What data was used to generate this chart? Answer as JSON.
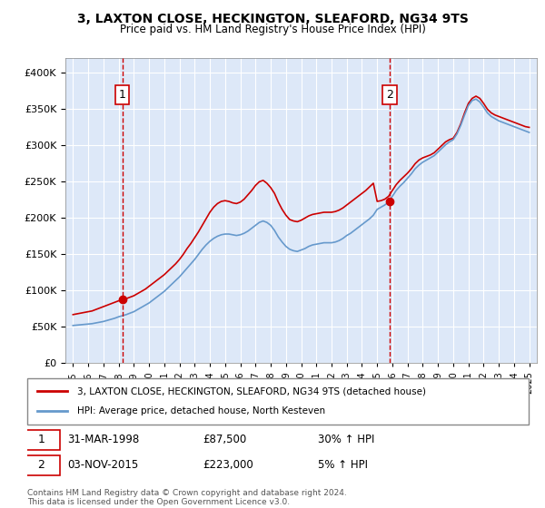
{
  "title": "3, LAXTON CLOSE, HECKINGTON, SLEAFORD, NG34 9TS",
  "subtitle": "Price paid vs. HM Land Registry's House Price Index (HPI)",
  "bg_color": "#dde8f8",
  "plot_bg_color": "#dde8f8",
  "red_line_color": "#cc0000",
  "blue_line_color": "#6699cc",
  "sale1_x": 1998.25,
  "sale1_y": 87500,
  "sale1_label": "1",
  "sale1_date": "31-MAR-1998",
  "sale1_price": "£87,500",
  "sale1_hpi": "30% ↑ HPI",
  "sale2_x": 2015.83,
  "sale2_y": 223000,
  "sale2_label": "2",
  "sale2_date": "03-NOV-2015",
  "sale2_price": "£223,000",
  "sale2_hpi": "5% ↑ HPI",
  "ylim": [
    0,
    420000
  ],
  "yticks": [
    0,
    50000,
    100000,
    150000,
    200000,
    250000,
    300000,
    350000,
    400000
  ],
  "ytick_labels": [
    "£0",
    "£50K",
    "£100K",
    "£150K",
    "£200K",
    "£250K",
    "£300K",
    "£350K",
    "£400K"
  ],
  "xlim_start": 1994.5,
  "xlim_end": 2025.5,
  "xticks": [
    1995,
    1996,
    1997,
    1998,
    1999,
    2000,
    2001,
    2002,
    2003,
    2004,
    2005,
    2006,
    2007,
    2008,
    2009,
    2010,
    2011,
    2012,
    2013,
    2014,
    2015,
    2016,
    2017,
    2018,
    2019,
    2020,
    2021,
    2022,
    2023,
    2024,
    2025
  ],
  "legend_red": "3, LAXTON CLOSE, HECKINGTON, SLEAFORD, NG34 9TS (detached house)",
  "legend_blue": "HPI: Average price, detached house, North Kesteven",
  "footer": "Contains HM Land Registry data © Crown copyright and database right 2024.\nThis data is licensed under the Open Government Licence v3.0.",
  "red_x": [
    1995.0,
    1995.25,
    1995.5,
    1995.75,
    1996.0,
    1996.25,
    1996.5,
    1996.75,
    1997.0,
    1997.25,
    1997.5,
    1997.75,
    1998.0,
    1998.25,
    1998.5,
    1998.75,
    1999.0,
    1999.25,
    1999.5,
    1999.75,
    2000.0,
    2000.25,
    2000.5,
    2000.75,
    2001.0,
    2001.25,
    2001.5,
    2001.75,
    2002.0,
    2002.25,
    2002.5,
    2002.75,
    2003.0,
    2003.25,
    2003.5,
    2003.75,
    2004.0,
    2004.25,
    2004.5,
    2004.75,
    2005.0,
    2005.25,
    2005.5,
    2005.75,
    2006.0,
    2006.25,
    2006.5,
    2006.75,
    2007.0,
    2007.25,
    2007.5,
    2007.75,
    2008.0,
    2008.25,
    2008.5,
    2008.75,
    2009.0,
    2009.25,
    2009.5,
    2009.75,
    2010.0,
    2010.25,
    2010.5,
    2010.75,
    2011.0,
    2011.25,
    2011.5,
    2011.75,
    2012.0,
    2012.25,
    2012.5,
    2012.75,
    2013.0,
    2013.25,
    2013.5,
    2013.75,
    2014.0,
    2014.25,
    2014.5,
    2014.75,
    2015.0,
    2015.25,
    2015.5,
    2015.75,
    2016.0,
    2016.25,
    2016.5,
    2016.75,
    2017.0,
    2017.25,
    2017.5,
    2017.75,
    2018.0,
    2018.25,
    2018.5,
    2018.75,
    2019.0,
    2019.25,
    2019.5,
    2019.75,
    2020.0,
    2020.25,
    2020.5,
    2020.75,
    2021.0,
    2021.25,
    2021.5,
    2021.75,
    2022.0,
    2022.25,
    2022.5,
    2022.75,
    2023.0,
    2023.25,
    2023.5,
    2023.75,
    2024.0,
    2024.25,
    2024.5,
    2024.75,
    2025.0
  ],
  "red_y": [
    67000,
    68000,
    69000,
    70000,
    71000,
    72000,
    74000,
    76000,
    78000,
    80000,
    82000,
    84000,
    86000,
    87500,
    89000,
    91000,
    93000,
    96000,
    99000,
    102000,
    106000,
    110000,
    114000,
    118000,
    122000,
    127000,
    132000,
    137000,
    143000,
    150000,
    158000,
    165000,
    173000,
    181000,
    190000,
    199000,
    208000,
    215000,
    220000,
    223000,
    224000,
    223000,
    221000,
    220000,
    222000,
    226000,
    232000,
    238000,
    245000,
    250000,
    252000,
    248000,
    242000,
    234000,
    222000,
    212000,
    204000,
    198000,
    196000,
    195000,
    197000,
    200000,
    203000,
    205000,
    206000,
    207000,
    208000,
    208000,
    208000,
    209000,
    211000,
    214000,
    218000,
    222000,
    226000,
    230000,
    234000,
    238000,
    243000,
    248000,
    223000,
    224000,
    226000,
    230000,
    238000,
    246000,
    252000,
    257000,
    262000,
    268000,
    275000,
    280000,
    283000,
    285000,
    287000,
    290000,
    295000,
    300000,
    305000,
    308000,
    310000,
    318000,
    330000,
    345000,
    358000,
    365000,
    368000,
    365000,
    358000,
    350000,
    345000,
    342000,
    340000,
    338000,
    336000,
    334000,
    332000,
    330000,
    328000,
    326000,
    325000
  ],
  "blue_x": [
    1995.0,
    1995.25,
    1995.5,
    1995.75,
    1996.0,
    1996.25,
    1996.5,
    1996.75,
    1997.0,
    1997.25,
    1997.5,
    1997.75,
    1998.0,
    1998.25,
    1998.5,
    1998.75,
    1999.0,
    1999.25,
    1999.5,
    1999.75,
    2000.0,
    2000.25,
    2000.5,
    2000.75,
    2001.0,
    2001.25,
    2001.5,
    2001.75,
    2002.0,
    2002.25,
    2002.5,
    2002.75,
    2003.0,
    2003.25,
    2003.5,
    2003.75,
    2004.0,
    2004.25,
    2004.5,
    2004.75,
    2005.0,
    2005.25,
    2005.5,
    2005.75,
    2006.0,
    2006.25,
    2006.5,
    2006.75,
    2007.0,
    2007.25,
    2007.5,
    2007.75,
    2008.0,
    2008.25,
    2008.5,
    2008.75,
    2009.0,
    2009.25,
    2009.5,
    2009.75,
    2010.0,
    2010.25,
    2010.5,
    2010.75,
    2011.0,
    2011.25,
    2011.5,
    2011.75,
    2012.0,
    2012.25,
    2012.5,
    2012.75,
    2013.0,
    2013.25,
    2013.5,
    2013.75,
    2014.0,
    2014.25,
    2014.5,
    2014.75,
    2015.0,
    2015.25,
    2015.5,
    2015.75,
    2016.0,
    2016.25,
    2016.5,
    2016.75,
    2017.0,
    2017.25,
    2017.5,
    2017.75,
    2018.0,
    2018.25,
    2018.5,
    2018.75,
    2019.0,
    2019.25,
    2019.5,
    2019.75,
    2020.0,
    2020.25,
    2020.5,
    2020.75,
    2021.0,
    2021.25,
    2021.5,
    2021.75,
    2022.0,
    2022.25,
    2022.5,
    2022.75,
    2023.0,
    2023.25,
    2023.5,
    2023.75,
    2024.0,
    2024.25,
    2024.5,
    2024.75,
    2025.0
  ],
  "blue_y": [
    52000,
    52500,
    53000,
    53500,
    54000,
    54500,
    55500,
    56500,
    57500,
    59000,
    60500,
    62000,
    64000,
    65500,
    67000,
    69000,
    71000,
    74000,
    77000,
    80000,
    83000,
    87000,
    91000,
    95000,
    99000,
    104000,
    109000,
    114000,
    119000,
    125000,
    131000,
    137000,
    143000,
    150000,
    157000,
    163000,
    168000,
    172000,
    175000,
    177000,
    178000,
    178000,
    177000,
    176000,
    177000,
    179000,
    182000,
    186000,
    190000,
    194000,
    196000,
    194000,
    190000,
    183000,
    174000,
    167000,
    161000,
    157000,
    155000,
    154000,
    156000,
    158000,
    161000,
    163000,
    164000,
    165000,
    166000,
    166000,
    166000,
    167000,
    169000,
    172000,
    176000,
    179000,
    183000,
    187000,
    191000,
    195000,
    199000,
    204000,
    212000,
    215000,
    218000,
    222000,
    230000,
    238000,
    244000,
    249000,
    255000,
    261000,
    268000,
    273000,
    277000,
    280000,
    283000,
    286000,
    291000,
    296000,
    301000,
    305000,
    308000,
    316000,
    328000,
    342000,
    355000,
    362000,
    364000,
    360000,
    353000,
    345000,
    340000,
    337000,
    334000,
    332000,
    330000,
    328000,
    326000,
    324000,
    322000,
    320000,
    318000
  ]
}
